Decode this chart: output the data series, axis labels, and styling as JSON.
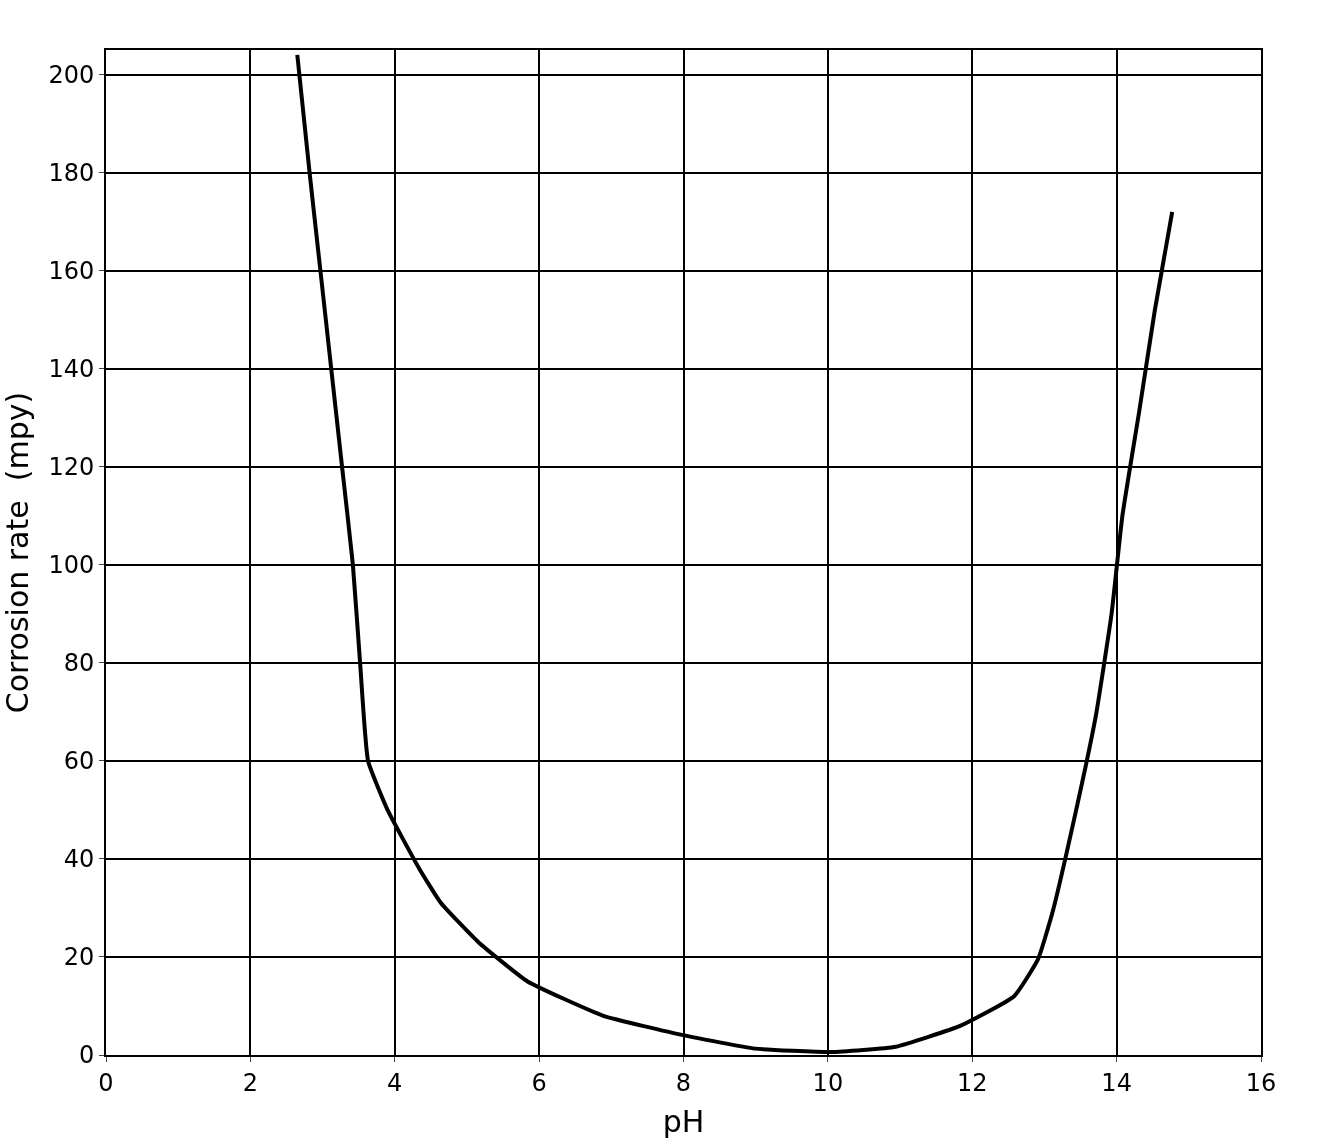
{
  "chart_data": {
    "type": "line",
    "xlabel": "pH",
    "ylabel": "Corrosion rate  (mpy)",
    "x": [
      2.65,
      2.82,
      2.97,
      3.12,
      3.27,
      3.42,
      3.52,
      3.63,
      3.9,
      4.34,
      4.64,
      5.16,
      5.84,
      6.89,
      8.01,
      8.99,
      10.04,
      10.94,
      11.84,
      12.58,
      12.91,
      13.11,
      13.41,
      13.71,
      13.93,
      14.08,
      14.31,
      14.53,
      14.77
    ],
    "series": [
      {
        "color": "#000000",
        "values": [
          204,
          180,
          160,
          140,
          120,
          100,
          80,
          60,
          50,
          38,
          31,
          23,
          15,
          8,
          4,
          1.3,
          0.6,
          1.7,
          6,
          12,
          19.5,
          29,
          48,
          69,
          90,
          110,
          131,
          152,
          172
        ]
      }
    ],
    "xlim": [
      0,
      16
    ],
    "xticks": [
      0,
      2,
      4,
      6,
      8,
      10,
      12,
      14,
      16
    ],
    "ylim": [
      0,
      205
    ],
    "yticks": [
      0,
      20,
      40,
      60,
      80,
      100,
      120,
      140,
      160,
      180,
      200
    ],
    "grid": true,
    "marker": "none",
    "line_style": "solid",
    "legend": false
  }
}
